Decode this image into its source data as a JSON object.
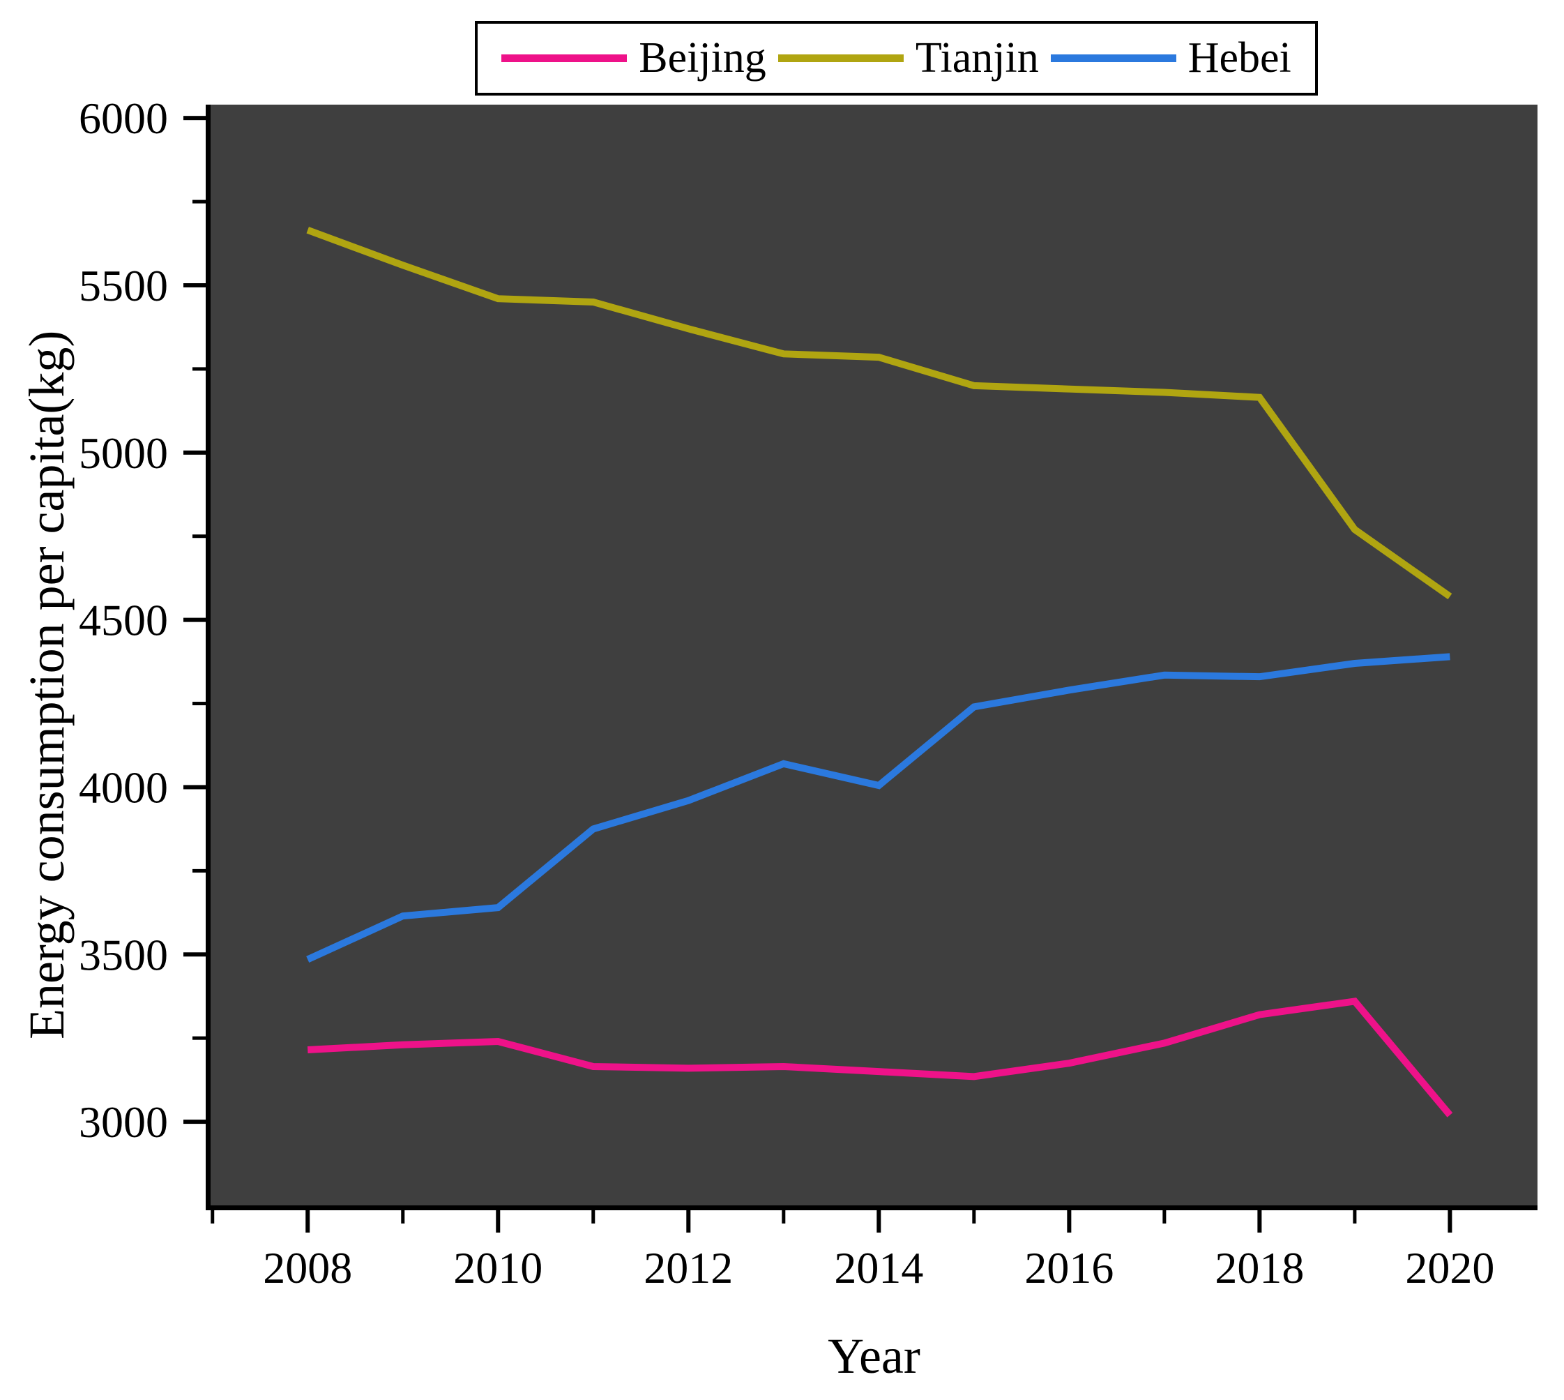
{
  "chart_data": {
    "type": "line",
    "title": "",
    "xlabel": "Year",
    "ylabel": "Energy consumption per capita(kg)",
    "x": [
      2008,
      2009,
      2010,
      2011,
      2012,
      2013,
      2014,
      2015,
      2016,
      2017,
      2018,
      2019,
      2020
    ],
    "series": [
      {
        "name": "Beijing",
        "color": "#ee1289",
        "values": [
          3215,
          3230,
          3240,
          3165,
          3160,
          3165,
          3150,
          3135,
          3175,
          3235,
          3320,
          3360,
          3020
        ]
      },
      {
        "name": "Tianjin",
        "color": "#b0a511",
        "values": [
          5665,
          5560,
          5460,
          5450,
          5370,
          5295,
          5285,
          5200,
          5190,
          5180,
          5165,
          4770,
          4570
        ]
      },
      {
        "name": "Hebei",
        "color": "#2b79de",
        "values": [
          3485,
          3615,
          3640,
          3875,
          3960,
          4070,
          4005,
          4240,
          4290,
          4335,
          4330,
          4370,
          4390
        ]
      }
    ],
    "xlim": [
      2006.98,
      2020.92
    ],
    "ylim": [
      2750,
      6040
    ],
    "x_major_ticks": [
      2008,
      2010,
      2012,
      2014,
      2016,
      2018,
      2020
    ],
    "x_minor_ticks": [
      2007,
      2009,
      2011,
      2013,
      2015,
      2017,
      2019
    ],
    "y_major_ticks": [
      3000,
      3500,
      4000,
      4500,
      5000,
      5500,
      6000
    ],
    "y_minor_ticks": [
      3250,
      3750,
      4250,
      4750,
      5250,
      5750
    ],
    "grid": "off",
    "legend_position": "top-center",
    "plot_background": "#3f3f3f",
    "axis_color": "#000000",
    "tick_label_color": "#000000"
  }
}
